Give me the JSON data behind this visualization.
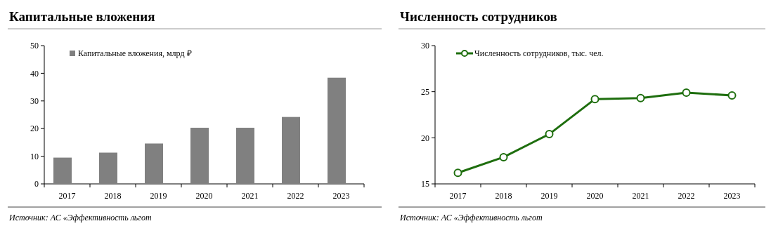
{
  "chart_data": [
    {
      "type": "bar",
      "title": "Капитальные вложения",
      "categories": [
        "2017",
        "2018",
        "2019",
        "2020",
        "2021",
        "2022",
        "2023"
      ],
      "series": [
        {
          "name": "Капитальные вложения, млрд ₽",
          "color": "#808080",
          "values": [
            9.5,
            11.3,
            14.6,
            20.3,
            20.3,
            24.2,
            38.4
          ]
        }
      ],
      "ylim": [
        0,
        50
      ],
      "yticks": [
        0,
        10,
        20,
        30,
        40,
        50
      ],
      "legend": "top left",
      "annotations": [
        "Источник: АС «Эффективность льгот"
      ]
    },
    {
      "type": "line",
      "title": "Численность сотрудников",
      "categories": [
        "2017",
        "2018",
        "2019",
        "2020",
        "2021",
        "2022",
        "2023"
      ],
      "series": [
        {
          "name": "Численность сотрудников, тыс. чел.",
          "color": "#1e6e0e",
          "values": [
            16.2,
            17.9,
            20.4,
            24.2,
            24.3,
            24.9,
            24.6
          ]
        }
      ],
      "ylim": [
        15,
        30
      ],
      "yticks": [
        15,
        20,
        25,
        30
      ],
      "legend": "top left",
      "marker": "circle",
      "annotations": [
        "Источник: АС «Эффективность льгот"
      ]
    }
  ]
}
